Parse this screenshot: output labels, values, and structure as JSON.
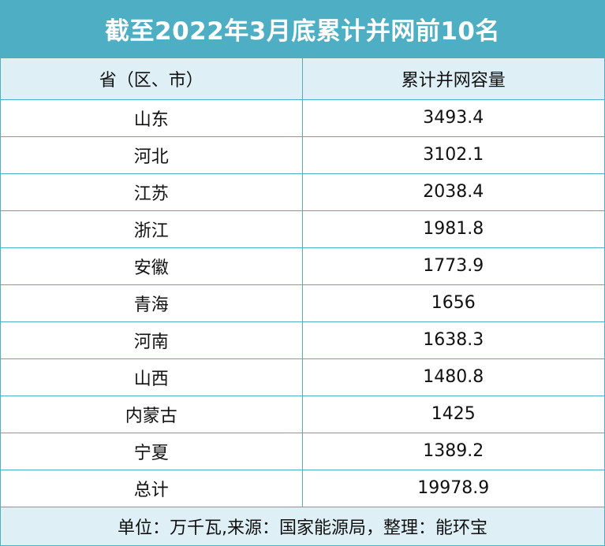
{
  "title": "截至2022年3月底累计并网前10名",
  "table": {
    "headers": [
      "省（区、市）",
      "累计并网容量"
    ],
    "rows": [
      {
        "region": "山东",
        "value": "3493.4"
      },
      {
        "region": "河北",
        "value": "3102.1"
      },
      {
        "region": "江苏",
        "value": "2038.4"
      },
      {
        "region": "浙江",
        "value": "1981.8"
      },
      {
        "region": "安徽",
        "value": "1773.9"
      },
      {
        "region": "青海",
        "value": "1656"
      },
      {
        "region": "河南",
        "value": "1638.3"
      },
      {
        "region": "山西",
        "value": "1480.8"
      },
      {
        "region": "内蒙古",
        "value": "1425"
      },
      {
        "region": "宁夏",
        "value": "1389.2"
      },
      {
        "region": "总计",
        "value": "19978.9"
      }
    ]
  },
  "footer": "单位：万千瓦,来源：国家能源局，整理：能环宝",
  "colors": {
    "accent": "#4eaec4",
    "header_bg": "#def0f6"
  }
}
